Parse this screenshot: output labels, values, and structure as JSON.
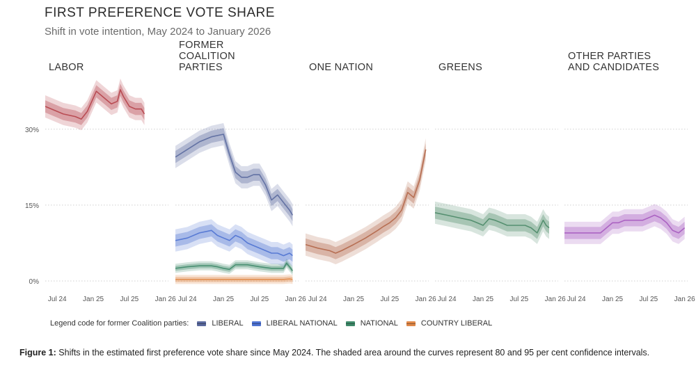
{
  "title": "FIRST PREFERENCE VOTE SHARE",
  "subtitle": "Shift in vote intention, May 2024 to January 2026",
  "caption": {
    "label": "Figure 1:",
    "text": "Shifts in the estimated first preference vote share since May 2024. The shaded area around the curves represent 80 and 95 per cent confidence intervals."
  },
  "legend": {
    "prefix": "Legend code for former Coalition parties:",
    "items": [
      {
        "label": "LIBERAL",
        "color": "#5b6a9e"
      },
      {
        "label": "LIBERAL NATIONAL",
        "color": "#4f73d2"
      },
      {
        "label": "NATIONAL",
        "color": "#3f8a6a"
      },
      {
        "label": "COUNTRY LIBERAL",
        "color": "#e0894a"
      }
    ]
  },
  "chart_data": {
    "type": "line",
    "y_tick_labels": [
      "0%",
      "15%",
      "30%"
    ],
    "y_ticks": [
      0,
      15,
      30
    ],
    "ylim": [
      0,
      40
    ],
    "x_tick_labels": [
      "Jul 24",
      "Jan 25",
      "Jul 25",
      "Jan 26"
    ],
    "x_ticks": [
      2,
      8,
      14,
      20
    ],
    "xlim": [
      0,
      20.5
    ],
    "x_start": "May 2024",
    "grid": true,
    "panels": [
      {
        "title": [
          "LABOR"
        ],
        "series": [
          {
            "color": "#b5424a",
            "x": [
              0,
              3,
              5,
              6,
              7,
              8.5,
              10,
              11,
              12,
              12.5,
              13,
              14,
              15,
              16,
              16.5
            ],
            "y": [
              34.5,
              33,
              32.5,
              32,
              33.5,
              37.5,
              36,
              35,
              35.5,
              37.8,
              36.5,
              34.5,
              34,
              34,
              33
            ]
          }
        ]
      },
      {
        "title": [
          "FORMER",
          "COALITION",
          "PARTIES"
        ],
        "series": [
          {
            "color": "#5b6a9e",
            "x": [
              0,
              2,
              4,
              6,
              8,
              9,
              10,
              11,
              12,
              13,
              14,
              15,
              16,
              17,
              18,
              19,
              19.5
            ],
            "y": [
              24.5,
              26,
              27.5,
              28.5,
              29,
              25,
              21.5,
              20.5,
              20.5,
              21,
              21,
              19,
              16,
              17,
              15.5,
              14,
              13
            ]
          },
          {
            "color": "#4f73d2",
            "x": [
              0,
              2,
              4,
              6,
              7,
              8,
              9,
              10,
              11,
              12,
              13,
              14,
              15,
              16,
              17,
              18,
              19,
              19.5
            ],
            "y": [
              8,
              8.5,
              9.5,
              10,
              9,
              8.5,
              8,
              9,
              8.5,
              7.5,
              7,
              6.5,
              6,
              5.5,
              5.5,
              5,
              5.5,
              5
            ]
          },
          {
            "color": "#3f8a6a",
            "x": [
              0,
              2,
              4,
              6,
              7,
              8,
              9,
              10,
              12,
              14,
              16,
              17,
              18,
              18.5,
              19,
              19.5
            ],
            "y": [
              2.5,
              2.8,
              3,
              3,
              2.8,
              2.5,
              2.3,
              3.2,
              3.2,
              2.8,
              2.5,
              2.5,
              2.5,
              3.5,
              2.8,
              2
            ]
          },
          {
            "color": "#e0894a",
            "x": [
              0,
              4,
              8,
              12,
              16,
              18,
              19,
              19.5
            ],
            "y": [
              0.3,
              0.3,
              0.3,
              0.3,
              0.3,
              0.3,
              0.4,
              0.3
            ]
          }
        ]
      },
      {
        "title": [
          "ONE NATION"
        ],
        "series": [
          {
            "color": "#b3674a",
            "x": [
              0,
              2,
              4,
              5,
              6,
              8,
              10,
              12,
              13,
              14,
              15,
              16,
              17,
              18,
              19,
              20
            ],
            "y": [
              7.2,
              6.5,
              6,
              5.5,
              6,
              7.2,
              8.5,
              10,
              10.8,
              11.5,
              12.5,
              14,
              17.5,
              16.5,
              20,
              26
            ]
          }
        ]
      },
      {
        "title": [
          "GREENS"
        ],
        "series": [
          {
            "color": "#4d8a68",
            "x": [
              0,
              2,
              4,
              6,
              7,
              8,
              9,
              10,
              11,
              12,
              13,
              14,
              15,
              16,
              17,
              18,
              18.5,
              19
            ],
            "y": [
              13.5,
              13,
              12.5,
              12,
              11.5,
              11,
              12.3,
              12,
              11.5,
              11,
              11,
              11,
              11,
              10.5,
              9.5,
              12,
              11,
              10.5
            ]
          }
        ]
      },
      {
        "title": [
          "OTHER PARTIES",
          "AND CANDIDATES"
        ],
        "series": [
          {
            "color": "#a65bbf",
            "x": [
              0,
              2,
              4,
              6,
              7,
              8,
              9,
              10,
              11,
              12,
              13,
              14,
              15,
              16,
              17,
              18,
              19,
              20
            ],
            "y": [
              9.5,
              9.5,
              9.5,
              9.5,
              10.5,
              11.5,
              11.5,
              12,
              12,
              12,
              12,
              12.5,
              13,
              12.5,
              11.5,
              10,
              9.5,
              10.5
            ]
          }
        ]
      }
    ]
  }
}
